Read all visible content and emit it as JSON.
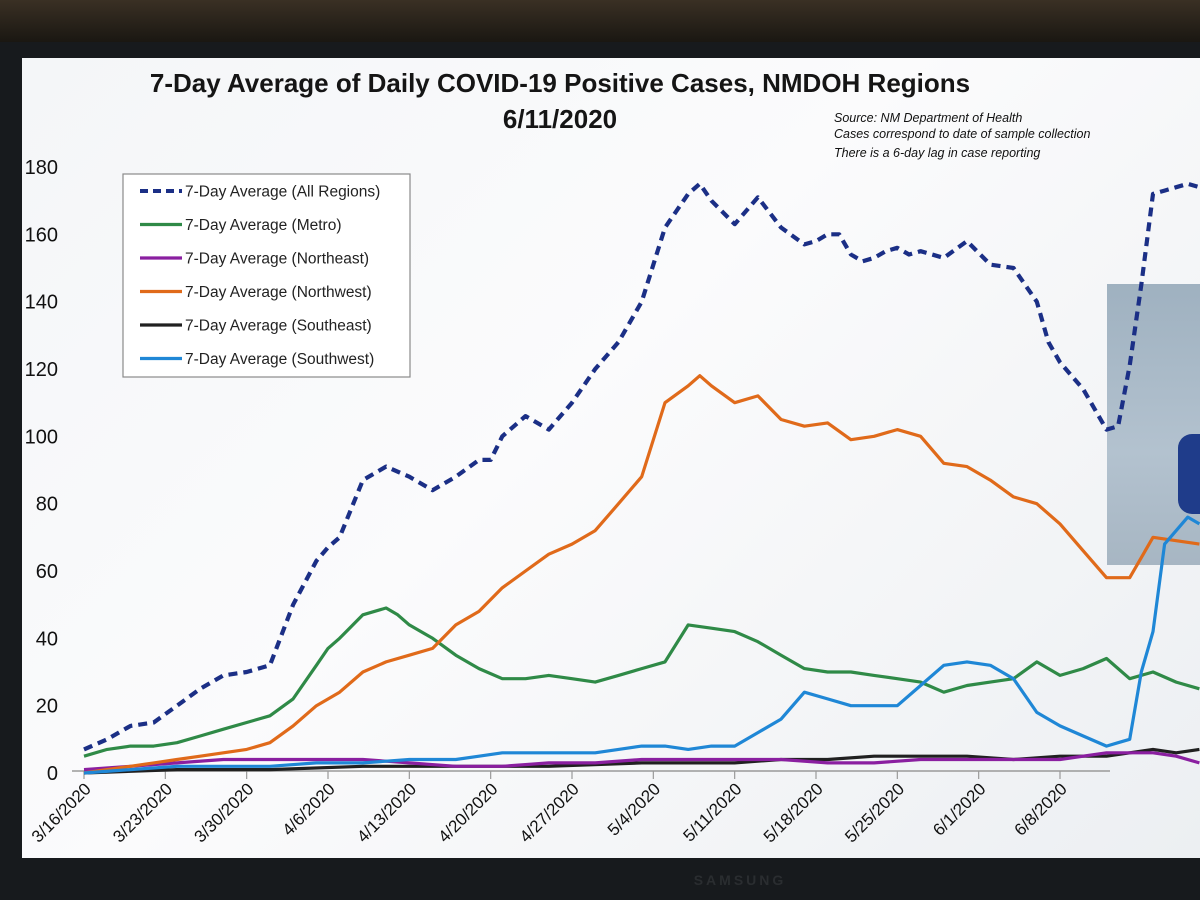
{
  "chart_data": {
    "type": "line",
    "title": "7-Day Average of Daily COVID-19 Positive Cases, NMDOH Regions",
    "subtitle": "6/11/2020",
    "annotations": [
      "Source: NM Department of Health",
      "Cases correspond to date of sample collection",
      "There is a 6-day lag in case reporting"
    ],
    "xlabel": "",
    "ylabel": "",
    "y_tick_labels": [
      "0",
      "20",
      "40",
      "60",
      "80",
      "100",
      "120",
      "140",
      "160",
      "180"
    ],
    "y_tick_values": [
      0,
      20,
      40,
      60,
      80,
      100,
      120,
      140,
      160,
      180
    ],
    "ylim": [
      0,
      180
    ],
    "x_tick_labels": [
      "3/16/2020",
      "3/23/2020",
      "3/30/2020",
      "4/6/2020",
      "4/13/2020",
      "4/20/2020",
      "4/27/2020",
      "5/4/2020",
      "5/11/2020",
      "5/18/2020",
      "5/25/2020",
      "6/1/2020",
      "6/8/2020"
    ],
    "x_start": "3/16/2020",
    "x_end": "6/8/2020",
    "x_values_note": "x are days after 3/16/2020",
    "grid": false,
    "legend_position": "top-left",
    "series": [
      {
        "name": "7-Day Average (All Regions)",
        "color": "#1b2f86",
        "dash": true,
        "x": [
          0,
          2,
          4,
          6,
          8,
          10,
          12,
          14,
          16,
          18,
          20,
          21,
          22,
          24,
          26,
          28,
          30,
          32,
          34,
          35,
          36,
          38,
          40,
          42,
          44,
          46,
          48,
          50,
          52,
          53,
          54,
          56,
          58,
          60,
          62,
          63,
          64,
          65,
          66,
          67,
          68,
          69,
          70,
          71,
          72,
          74,
          76,
          78,
          80,
          82,
          83,
          84,
          86,
          88,
          89,
          90,
          91,
          92,
          93,
          94,
          95,
          96
        ],
        "y": [
          7,
          10,
          14,
          15,
          20,
          25,
          29,
          30,
          32,
          50,
          63,
          67,
          70,
          87,
          91,
          88,
          84,
          88,
          93,
          93,
          100,
          106,
          102,
          110,
          120,
          128,
          140,
          162,
          172,
          175,
          170,
          163,
          171,
          162,
          157,
          158,
          160,
          160,
          154,
          152,
          153,
          155,
          156,
          154,
          155,
          153,
          158,
          151,
          150,
          140,
          128,
          122,
          114,
          102,
          103,
          121,
          145,
          172,
          173,
          174,
          175,
          174
        ]
      },
      {
        "name": "7-Day Average (Metro)",
        "color": "#2f8a47",
        "dash": false,
        "x": [
          0,
          2,
          4,
          6,
          8,
          10,
          12,
          14,
          16,
          18,
          20,
          21,
          22,
          24,
          26,
          27,
          28,
          30,
          32,
          34,
          36,
          38,
          40,
          42,
          44,
          46,
          48,
          50,
          52,
          54,
          56,
          58,
          60,
          62,
          64,
          66,
          68,
          70,
          72,
          74,
          76,
          78,
          80,
          82,
          84,
          86,
          88,
          90,
          92,
          94,
          96
        ],
        "y": [
          5,
          7,
          8,
          8,
          9,
          11,
          13,
          15,
          17,
          22,
          32,
          37,
          40,
          47,
          49,
          47,
          44,
          40,
          35,
          31,
          28,
          28,
          29,
          28,
          27,
          29,
          31,
          33,
          44,
          43,
          42,
          39,
          35,
          31,
          30,
          30,
          29,
          28,
          27,
          24,
          26,
          27,
          28,
          33,
          29,
          31,
          34,
          28,
          30,
          27,
          25
        ]
      },
      {
        "name": "7-Day Average (Northeast)",
        "color": "#8a1fa0",
        "dash": false,
        "x": [
          0,
          4,
          8,
          12,
          16,
          20,
          24,
          28,
          32,
          36,
          40,
          44,
          48,
          52,
          56,
          60,
          64,
          68,
          72,
          76,
          80,
          84,
          88,
          92,
          94,
          96
        ],
        "y": [
          1,
          2,
          3,
          4,
          4,
          4,
          4,
          3,
          2,
          2,
          3,
          3,
          4,
          4,
          4,
          4,
          3,
          3,
          4,
          4,
          4,
          4,
          6,
          6,
          5,
          3
        ]
      },
      {
        "name": "7-Day Average (Northwest)",
        "color": "#e06a1a",
        "dash": false,
        "x": [
          0,
          2,
          4,
          6,
          8,
          10,
          12,
          14,
          16,
          18,
          20,
          22,
          24,
          26,
          28,
          30,
          32,
          34,
          36,
          38,
          40,
          42,
          44,
          46,
          48,
          50,
          52,
          53,
          54,
          56,
          58,
          60,
          62,
          64,
          66,
          68,
          70,
          72,
          74,
          76,
          78,
          80,
          82,
          84,
          86,
          88,
          90,
          92,
          94,
          96
        ],
        "y": [
          0,
          1,
          2,
          3,
          4,
          5,
          6,
          7,
          9,
          14,
          20,
          24,
          30,
          33,
          35,
          37,
          44,
          48,
          55,
          60,
          65,
          68,
          72,
          80,
          88,
          110,
          115,
          118,
          115,
          110,
          112,
          105,
          103,
          104,
          99,
          100,
          102,
          100,
          92,
          91,
          87,
          82,
          80,
          74,
          66,
          58,
          58,
          70,
          69,
          68
        ]
      },
      {
        "name": "7-Day Average (Southeast)",
        "color": "#202020",
        "dash": false,
        "x": [
          0,
          8,
          16,
          24,
          32,
          40,
          48,
          56,
          60,
          64,
          68,
          72,
          76,
          80,
          84,
          88,
          92,
          94,
          96
        ],
        "y": [
          0,
          1,
          1,
          2,
          2,
          2,
          3,
          3,
          4,
          4,
          5,
          5,
          5,
          4,
          5,
          5,
          7,
          6,
          7
        ]
      },
      {
        "name": "7-Day Average (Southwest)",
        "color": "#1f87d6",
        "dash": false,
        "x": [
          0,
          4,
          8,
          12,
          16,
          20,
          24,
          28,
          32,
          34,
          36,
          38,
          40,
          42,
          44,
          46,
          48,
          50,
          52,
          54,
          56,
          58,
          60,
          62,
          64,
          66,
          68,
          70,
          72,
          74,
          76,
          78,
          80,
          82,
          84,
          86,
          88,
          89,
          90,
          91,
          92,
          93,
          94,
          95,
          96
        ],
        "y": [
          0,
          1,
          2,
          2,
          2,
          3,
          3,
          4,
          4,
          5,
          6,
          6,
          6,
          6,
          6,
          7,
          8,
          8,
          7,
          8,
          8,
          12,
          16,
          24,
          22,
          20,
          20,
          20,
          26,
          32,
          33,
          32,
          28,
          18,
          14,
          11,
          8,
          9,
          10,
          30,
          42,
          68,
          72,
          76,
          74
        ]
      }
    ]
  }
}
